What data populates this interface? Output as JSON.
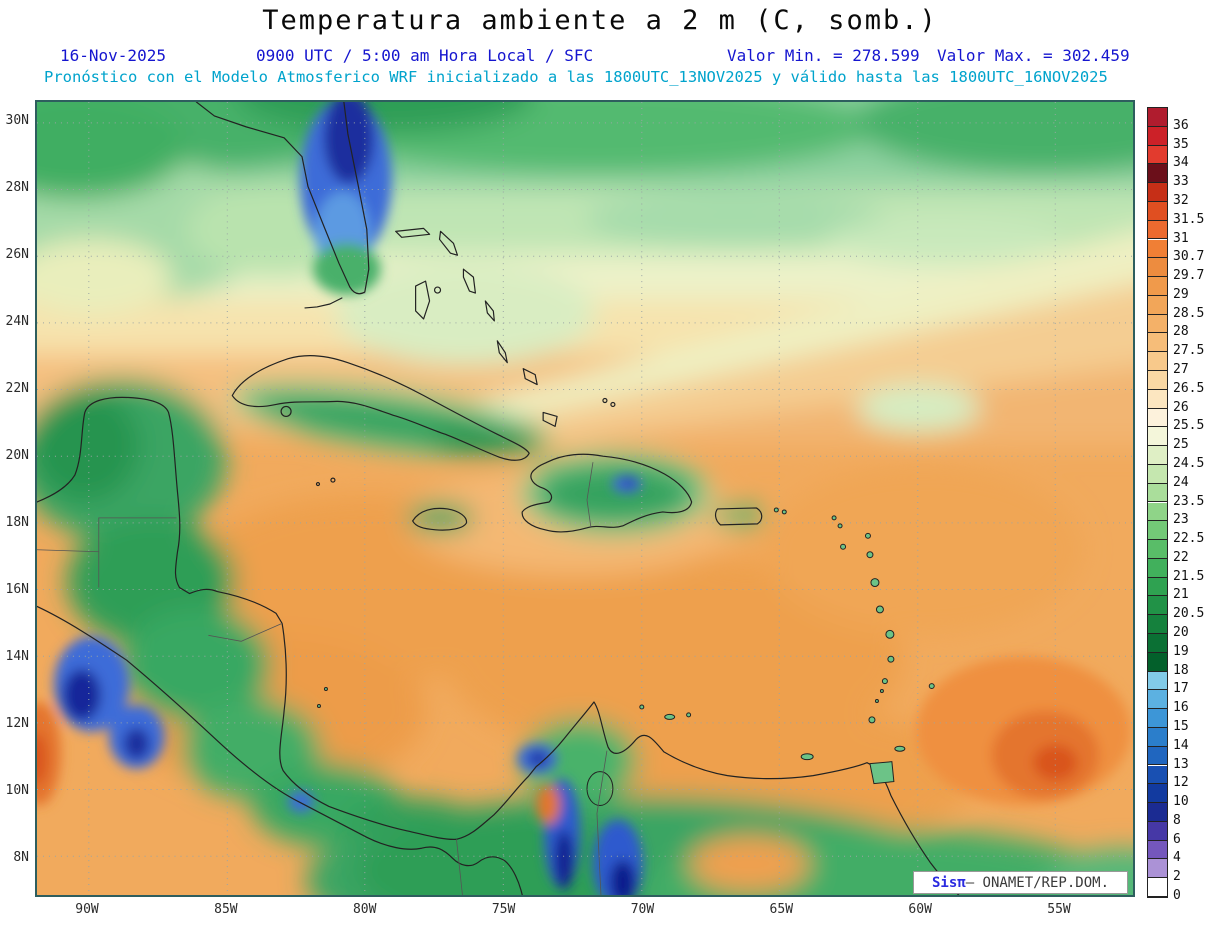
{
  "title": "Temperatura ambiente a 2 m (C, somb.)",
  "subtitle": {
    "date": "16-Nov-2025",
    "time": "0900 UTC / 5:00 am Hora Local / SFC",
    "valor_min": "Valor Min. = 278.599",
    "valor_max": "Valor Max. = 302.459",
    "forecast": "Pronóstico con el Modelo Atmosferico WRF inicializado a las 1800UTC_13NOV2025 y válido hasta las  1800UTC_16NOV2025"
  },
  "colors": {
    "subtitle_blue": "#1515cf",
    "forecast_teal": "#00a3cc",
    "map_border": "#2e5e5e",
    "credit_blue": "#2b2be0"
  },
  "map": {
    "lat_ticks": [
      "30N",
      "28N",
      "26N",
      "24N",
      "22N",
      "20N",
      "18N",
      "16N",
      "14N",
      "12N",
      "10N",
      "8N"
    ],
    "lon_ticks": [
      "90W",
      "85W",
      "80W",
      "75W",
      "70W",
      "65W",
      "60W",
      "55W"
    ],
    "credit_brand": "Sisπ",
    "credit_text": "– ONAMET/REP.DOM."
  },
  "chart_data": {
    "type": "heatmap",
    "title": "Temperatura ambiente a 2 m (C, somb.)",
    "units": "C",
    "valor_min": 278.599,
    "valor_max": 302.459,
    "valid_date": "16-Nov-2025",
    "valid_time": "0900 UTC / 5:00 am Hora Local / SFC",
    "model_line": "Pronóstico con el Modelo Atmosferico WRF inicializado a las 1800UTC_13NOV2025 y válido hasta las 1800UTC_16NOV2025",
    "legend_position": "right",
    "grid": true,
    "colorbar": [
      {
        "label": "36",
        "color": "#b01c2e"
      },
      {
        "label": "35",
        "color": "#cc2128"
      },
      {
        "label": "34",
        "color": "#e23b2e"
      },
      {
        "label": "33",
        "color": "#6b0f1a"
      },
      {
        "label": "32",
        "color": "#c62f17"
      },
      {
        "label": "31.5",
        "color": "#e04f21"
      },
      {
        "label": "31",
        "color": "#ec6a2f"
      },
      {
        "label": "30.7",
        "color": "#f07f35"
      },
      {
        "label": "29.7",
        "color": "#ed8c3f"
      },
      {
        "label": "29",
        "color": "#f09a4b"
      },
      {
        "label": "28.5",
        "color": "#f2a659"
      },
      {
        "label": "28",
        "color": "#f4b168"
      },
      {
        "label": "27.5",
        "color": "#f6bd79"
      },
      {
        "label": "27",
        "color": "#f8c98b"
      },
      {
        "label": "26.5",
        "color": "#fad8a4"
      },
      {
        "label": "26",
        "color": "#fce6c0"
      },
      {
        "label": "25.5",
        "color": "#fdf2dc"
      },
      {
        "label": "25",
        "color": "#f4f6da"
      },
      {
        "label": "24.5",
        "color": "#dfefc5"
      },
      {
        "label": "24",
        "color": "#c5e7af"
      },
      {
        "label": "23.5",
        "color": "#aade9b"
      },
      {
        "label": "23",
        "color": "#8fd488"
      },
      {
        "label": "22.5",
        "color": "#73c977"
      },
      {
        "label": "22",
        "color": "#59bd68"
      },
      {
        "label": "21.5",
        "color": "#41b05c"
      },
      {
        "label": "21",
        "color": "#2fa251"
      },
      {
        "label": "20.5",
        "color": "#219247"
      },
      {
        "label": "20",
        "color": "#15813d"
      },
      {
        "label": "19",
        "color": "#0b7034"
      },
      {
        "label": "18",
        "color": "#03602b"
      },
      {
        "label": "17",
        "color": "#82cbe8"
      },
      {
        "label": "16",
        "color": "#5cb1e1"
      },
      {
        "label": "15",
        "color": "#3d96d7"
      },
      {
        "label": "14",
        "color": "#2b7ecb"
      },
      {
        "label": "13",
        "color": "#2066bf"
      },
      {
        "label": "12",
        "color": "#1950b2"
      },
      {
        "label": "10",
        "color": "#123a9f"
      },
      {
        "label": "8",
        "color": "#1b2b92"
      },
      {
        "label": "6",
        "color": "#4638a6"
      },
      {
        "label": "4",
        "color": "#7457bc"
      },
      {
        "label": "2",
        "color": "#ab92d6"
      },
      {
        "label": "0",
        "color": "#ffffff"
      }
    ]
  }
}
